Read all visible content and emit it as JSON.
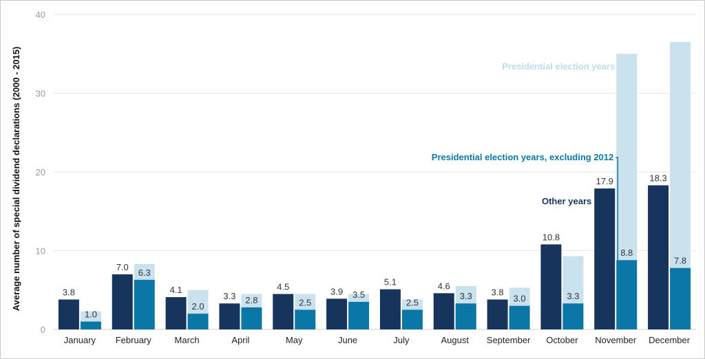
{
  "chart_data": {
    "type": "bar",
    "ylabel": "Average number of special dividend declarations  (2000 - 2015)",
    "xlabel": "",
    "ylim": [
      0,
      40
    ],
    "yticks": [
      0,
      10,
      20,
      30,
      40
    ],
    "grid": true,
    "categories": [
      "January",
      "February",
      "March",
      "April",
      "May",
      "June",
      "July",
      "August",
      "September",
      "October",
      "November",
      "December"
    ],
    "series": [
      {
        "name": "Other years",
        "color": "#17345c",
        "values": [
          3.8,
          7.0,
          4.1,
          3.3,
          4.5,
          3.9,
          5.1,
          4.6,
          3.8,
          10.8,
          17.9,
          18.3
        ],
        "labels": [
          "3.8",
          "7.0",
          "4.1",
          "3.3",
          "4.5",
          "3.9",
          "5.1",
          "4.6",
          "3.8",
          "10.8",
          "17.9",
          "18.3"
        ]
      },
      {
        "name": "Presidential election years, excluding 2012",
        "color": "#0b77a6",
        "values": [
          1.0,
          6.3,
          2.0,
          2.8,
          2.5,
          3.5,
          2.5,
          3.3,
          3.0,
          3.3,
          8.8,
          7.8
        ],
        "labels": [
          "1.0",
          "6.3",
          "2.0",
          "2.8",
          "2.5",
          "3.5",
          "2.5",
          "3.3",
          "3.0",
          "3.3",
          "8.8",
          "7.8"
        ]
      },
      {
        "name": "Presidential election years",
        "color": "#c9e2ee",
        "values": [
          2.3,
          8.3,
          5.0,
          4.5,
          4.5,
          4.5,
          3.8,
          5.5,
          5.3,
          9.3,
          35.0,
          36.5
        ]
      }
    ],
    "annotations": {
      "other_years": "Other years",
      "excluding_2012": "Presidential election years, excluding 2012",
      "election_years": "Presidential election years"
    }
  }
}
